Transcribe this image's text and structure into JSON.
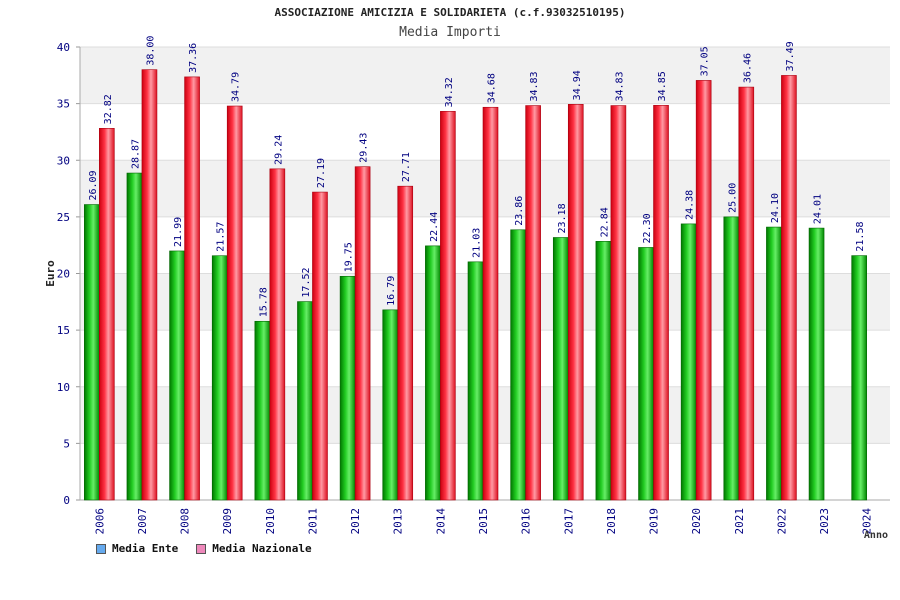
{
  "chart_data": {
    "type": "bar",
    "title": "ASSOCIAZIONE AMICIZIA E SOLIDARIETA (c.f.93032510195)",
    "subtitle": "Media Importi",
    "xlabel": "Anno",
    "ylabel": "Euro",
    "ylim": [
      0,
      40
    ],
    "yticks": [
      0,
      5,
      10,
      15,
      20,
      25,
      30,
      35,
      40
    ],
    "categories": [
      "2006",
      "2007",
      "2008",
      "2009",
      "2010",
      "2011",
      "2012",
      "2013",
      "2014",
      "2015",
      "2016",
      "2017",
      "2018",
      "2019",
      "2020",
      "2021",
      "2022",
      "2023",
      "2024"
    ],
    "series": [
      {
        "name": "Media Ente",
        "color": "#00aa00",
        "legend_color": "#66aaee",
        "values": [
          26.09,
          28.87,
          21.99,
          21.57,
          15.78,
          17.52,
          19.75,
          16.79,
          22.44,
          21.03,
          23.86,
          23.18,
          22.84,
          22.3,
          24.38,
          25.0,
          24.1,
          24.01,
          21.58
        ],
        "labels": [
          "26.09",
          "28.87",
          "21.99",
          "21.57",
          "15.78",
          "17.52",
          "19.75",
          "16.79",
          "22.44",
          "21.03",
          "23.86",
          "23.18",
          "22.84",
          "22.30",
          "24.38",
          "25.00",
          "24.10",
          "24.01",
          "21.58"
        ]
      },
      {
        "name": "Media Nazionale",
        "color": "#ee1c2a",
        "legend_color": "#ee88bb",
        "values": [
          32.82,
          38.0,
          37.36,
          34.79,
          29.24,
          27.19,
          29.43,
          27.71,
          34.32,
          34.68,
          34.83,
          34.94,
          34.83,
          34.85,
          37.05,
          36.46,
          37.49,
          null,
          null
        ],
        "labels": [
          "32.82",
          "38.00",
          "37.36",
          "34.79",
          "29.24",
          "27.19",
          "29.43",
          "27.71",
          "34.32",
          "34.68",
          "34.83",
          "34.94",
          "34.83",
          "34.85",
          "37.05",
          "36.46",
          "37.49",
          null,
          null
        ]
      }
    ],
    "grid": true,
    "legend_position": "bottom-left"
  }
}
